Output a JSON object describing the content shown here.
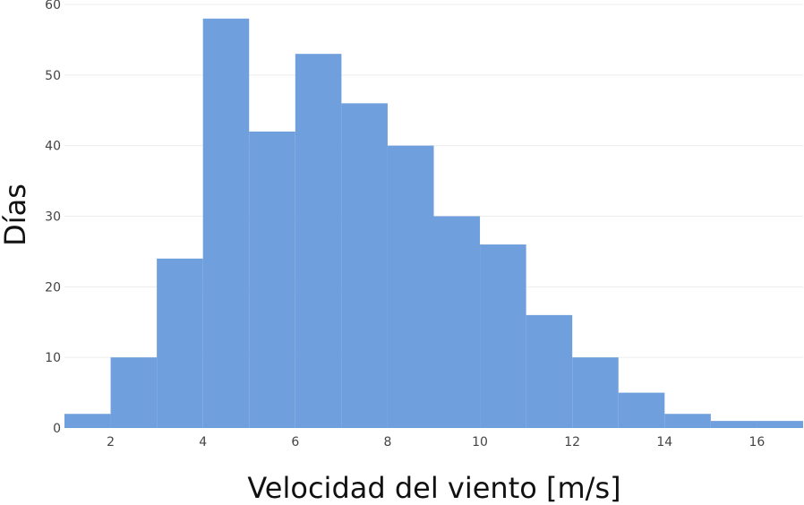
{
  "chart_data": {
    "type": "bar",
    "subtype": "histogram",
    "bin_width": 1,
    "bins": [
      {
        "start": 1,
        "end": 2,
        "value": 2
      },
      {
        "start": 2,
        "end": 3,
        "value": 10
      },
      {
        "start": 3,
        "end": 4,
        "value": 24
      },
      {
        "start": 4,
        "end": 5,
        "value": 58
      },
      {
        "start": 5,
        "end": 6,
        "value": 42
      },
      {
        "start": 6,
        "end": 7,
        "value": 53
      },
      {
        "start": 7,
        "end": 8,
        "value": 46
      },
      {
        "start": 8,
        "end": 9,
        "value": 40
      },
      {
        "start": 9,
        "end": 10,
        "value": 30
      },
      {
        "start": 10,
        "end": 11,
        "value": 26
      },
      {
        "start": 11,
        "end": 12,
        "value": 16
      },
      {
        "start": 12,
        "end": 13,
        "value": 10
      },
      {
        "start": 13,
        "end": 14,
        "value": 5
      },
      {
        "start": 14,
        "end": 15,
        "value": 2
      },
      {
        "start": 15,
        "end": 16,
        "value": 1
      },
      {
        "start": 16,
        "end": 17,
        "value": 1
      }
    ],
    "title": "",
    "xlabel": "Velocidad del viento [m/s]",
    "ylabel": "Días",
    "xlim": [
      1,
      17
    ],
    "ylim": [
      0,
      60
    ],
    "xticks": [
      "2",
      "4",
      "6",
      "8",
      "10",
      "12",
      "14",
      "16"
    ],
    "yticks": [
      "0",
      "10",
      "20",
      "30",
      "40",
      "50",
      "60"
    ],
    "grid": "horizontal",
    "legend": "none",
    "bar_color": "#6f9fdc",
    "grid_color": "#ececec"
  }
}
